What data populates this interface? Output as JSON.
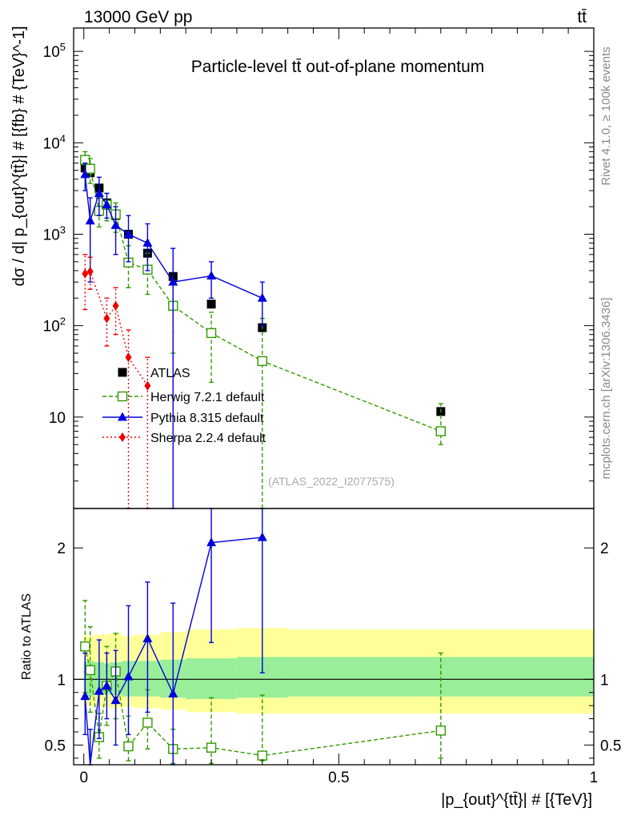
{
  "header": {
    "energy_label": "13000 GeV pp",
    "process_label": "tt̄",
    "rivet_label": "Rivet 4.1.0, ≥ 100k events",
    "mcplots_label": "mcplots.cern.ch [arXiv:1306.3436]"
  },
  "colors": {
    "atlas": "#000000",
    "herwig": "#339900",
    "pythia": "#0000dd",
    "sherpa": "#ee0000",
    "band_inner": "#99ee99",
    "band_outer": "#ffff99"
  },
  "chart_data": [
    {
      "type": "scatter",
      "panel": "main",
      "title": "Particle-level tt̄ out-of-plane momentum",
      "analysis_tag": "(ATLAS_2022_I2077575)",
      "ylabel": "dσ / d| p_{out}^{tt̄}| # [{fb} # {TeV}^-1]",
      "yscale": "log",
      "ylim": [
        1,
        180000
      ],
      "xlim": [
        -0.02,
        1.0
      ],
      "ytick_labels": [
        "10",
        "10^2",
        "10^3",
        "10^4",
        "10^5"
      ],
      "legend": [
        "ATLAS",
        "Herwig 7.2.1 default",
        "Pythia 8.315 default",
        "Sherpa 2.2.4 default"
      ],
      "series": [
        {
          "name": "ATLAS",
          "style": "square-filled",
          "x": [
            0.0025,
            0.0125,
            0.03,
            0.045,
            0.0625,
            0.0875,
            0.125,
            0.175,
            0.25,
            0.35,
            0.7
          ],
          "values": [
            5300,
            4700,
            3200,
            2200,
            1600,
            1000,
            620,
            345,
            172,
            95,
            11.5
          ]
        },
        {
          "name": "Herwig 7.2.1 default",
          "style": "square-open-dashed",
          "x": [
            0.0025,
            0.0125,
            0.03,
            0.045,
            0.0625,
            0.0875,
            0.125,
            0.175,
            0.25,
            0.35,
            0.7
          ],
          "values": [
            6500,
            5200,
            1800,
            2100,
            1650,
            490,
            410,
            165,
            83,
            41,
            7
          ],
          "err_lo": [
            4500,
            3600,
            1200,
            1400,
            1050,
            260,
            220,
            50,
            24,
            1,
            5
          ],
          "err_hi": [
            8000,
            6700,
            2500,
            2800,
            2200,
            750,
            620,
            300,
            140,
            120,
            14
          ]
        },
        {
          "name": "Pythia 8.315 default",
          "style": "triangle-solid",
          "x": [
            0.0025,
            0.0125,
            0.03,
            0.045,
            0.0625,
            0.0875,
            0.125,
            0.175,
            0.25,
            0.35
          ],
          "values": [
            4500,
            1400,
            2800,
            2100,
            1250,
            1000,
            800,
            300,
            350,
            200
          ],
          "err_lo": [
            3000,
            300,
            1600,
            1500,
            600,
            500,
            400,
            1,
            200,
            100
          ],
          "err_hi": [
            6000,
            2500,
            4200,
            2800,
            2000,
            1600,
            1300,
            700,
            500,
            300
          ]
        },
        {
          "name": "Sherpa 2.2.4 default",
          "style": "diamond-dotted",
          "x": [
            0.0025,
            0.0125,
            0.045,
            0.0625,
            0.0875,
            0.125
          ],
          "values": [
            370,
            390,
            120,
            165,
            45,
            22
          ],
          "err_lo": [
            150,
            250,
            60,
            80,
            1,
            1
          ],
          "err_hi": [
            600,
            560,
            200,
            260,
            90,
            45
          ]
        }
      ]
    },
    {
      "type": "scatter",
      "panel": "ratio",
      "ylabel": "Ratio to ATLAS",
      "xlabel": "|p_{out}^{tt̄}| # [{TeV}]",
      "xlim": [
        -0.02,
        1.0
      ],
      "ylim": [
        0.35,
        2.3
      ],
      "xtick_labels": [
        "0",
        "0.5",
        "1"
      ],
      "ytick_labels": [
        "0.5",
        "1",
        "2"
      ],
      "bands": [
        {
          "x_lo": [
            0,
            0.005,
            0.02,
            0.04,
            0.05,
            0.075,
            0.1,
            0.15,
            0.2,
            0.3,
            0.4
          ],
          "x_hi": [
            0.005,
            0.02,
            0.04,
            0.05,
            0.075,
            0.1,
            0.15,
            0.2,
            0.3,
            0.4,
            1.0
          ],
          "inner_lo": [
            0.88,
            0.87,
            0.88,
            0.89,
            0.88,
            0.87,
            0.87,
            0.86,
            0.85,
            0.86,
            0.87
          ],
          "inner_hi": [
            1.13,
            1.14,
            1.13,
            1.12,
            1.13,
            1.14,
            1.14,
            1.15,
            1.16,
            1.17,
            1.17
          ],
          "outer_lo": [
            0.8,
            0.8,
            0.79,
            0.79,
            0.78,
            0.79,
            0.78,
            0.77,
            0.75,
            0.74,
            0.74
          ],
          "outer_hi": [
            1.34,
            1.33,
            1.34,
            1.34,
            1.35,
            1.33,
            1.34,
            1.36,
            1.38,
            1.39,
            1.38
          ]
        }
      ],
      "series": [
        {
          "name": "Herwig 7.2.1 default",
          "x": [
            0.0025,
            0.0125,
            0.03,
            0.045,
            0.0625,
            0.0875,
            0.125,
            0.175,
            0.25,
            0.35,
            0.7
          ],
          "values": [
            1.25,
            1.07,
            0.56,
            0.95,
            1.06,
            0.49,
            0.67,
            0.47,
            0.48,
            0.42,
            0.61
          ],
          "err_lo": [
            0.9,
            0.75,
            0.4,
            0.65,
            0.7,
            0.38,
            0.47,
            0.36,
            0.36,
            0.38,
            0.4
          ],
          "err_hi": [
            1.6,
            1.4,
            0.74,
            1.25,
            1.35,
            0.72,
            0.92,
            0.62,
            0.86,
            0.88,
            1.2
          ]
        },
        {
          "name": "Pythia 8.315 default",
          "x": [
            0.0025,
            0.0125,
            0.03,
            0.045,
            0.0625,
            0.0875,
            0.125,
            0.175,
            0.25,
            0.35
          ],
          "values": [
            0.87,
            0.3,
            0.91,
            0.95,
            0.84,
            1.02,
            1.31,
            0.89,
            2.04,
            2.08
          ],
          "err_lo": [
            0.58,
            0.25,
            0.55,
            0.7,
            0.5,
            0.58,
            0.75,
            0.33,
            1.28,
            1.05
          ],
          "err_hi": [
            1.2,
            0.62,
            1.3,
            1.2,
            1.22,
            1.56,
            1.74,
            1.58,
            2.3,
            2.3
          ]
        }
      ]
    }
  ]
}
